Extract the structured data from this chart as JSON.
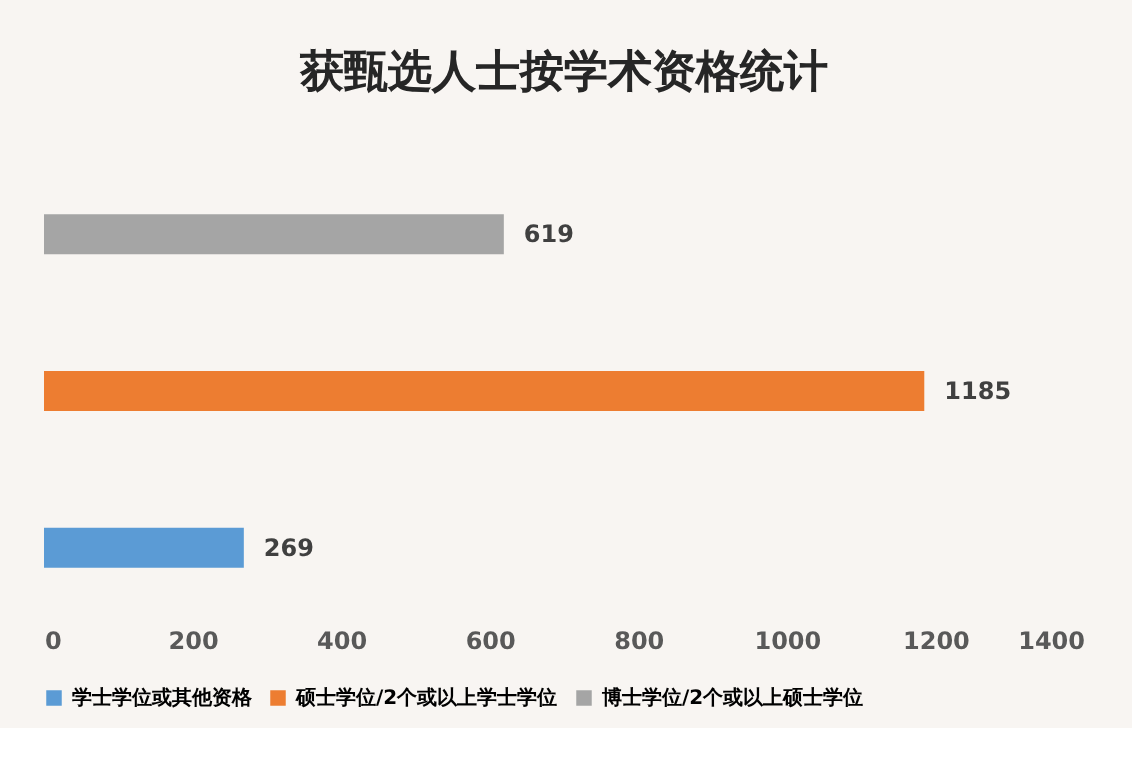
{
  "chart_data": {
    "type": "bar",
    "orientation": "horizontal",
    "stacked": true,
    "title": "获甄选人士按学术资格统计",
    "categories": [
      null,
      null,
      null
    ],
    "series": [
      {
        "name": "学士学位或其他资格",
        "color": "#5b9bd5",
        "values": [
          0,
          0,
          269
        ]
      },
      {
        "name": "硕士学位/2个或以上学士学位",
        "color": "#ed7d31",
        "values": [
          0,
          1185,
          0
        ]
      },
      {
        "name": "博士学位/2个或以上硕士学位",
        "color": "#a5a5a5",
        "values": [
          619,
          0,
          0
        ]
      }
    ],
    "totals": [
      "619",
      "1185",
      "269"
    ],
    "xlim": [
      0,
      1400
    ],
    "xticks": [
      0,
      200,
      400,
      600,
      800,
      1000,
      1200,
      1400
    ],
    "grid": false,
    "legend": "bottom",
    "tick_labels": "x"
  }
}
